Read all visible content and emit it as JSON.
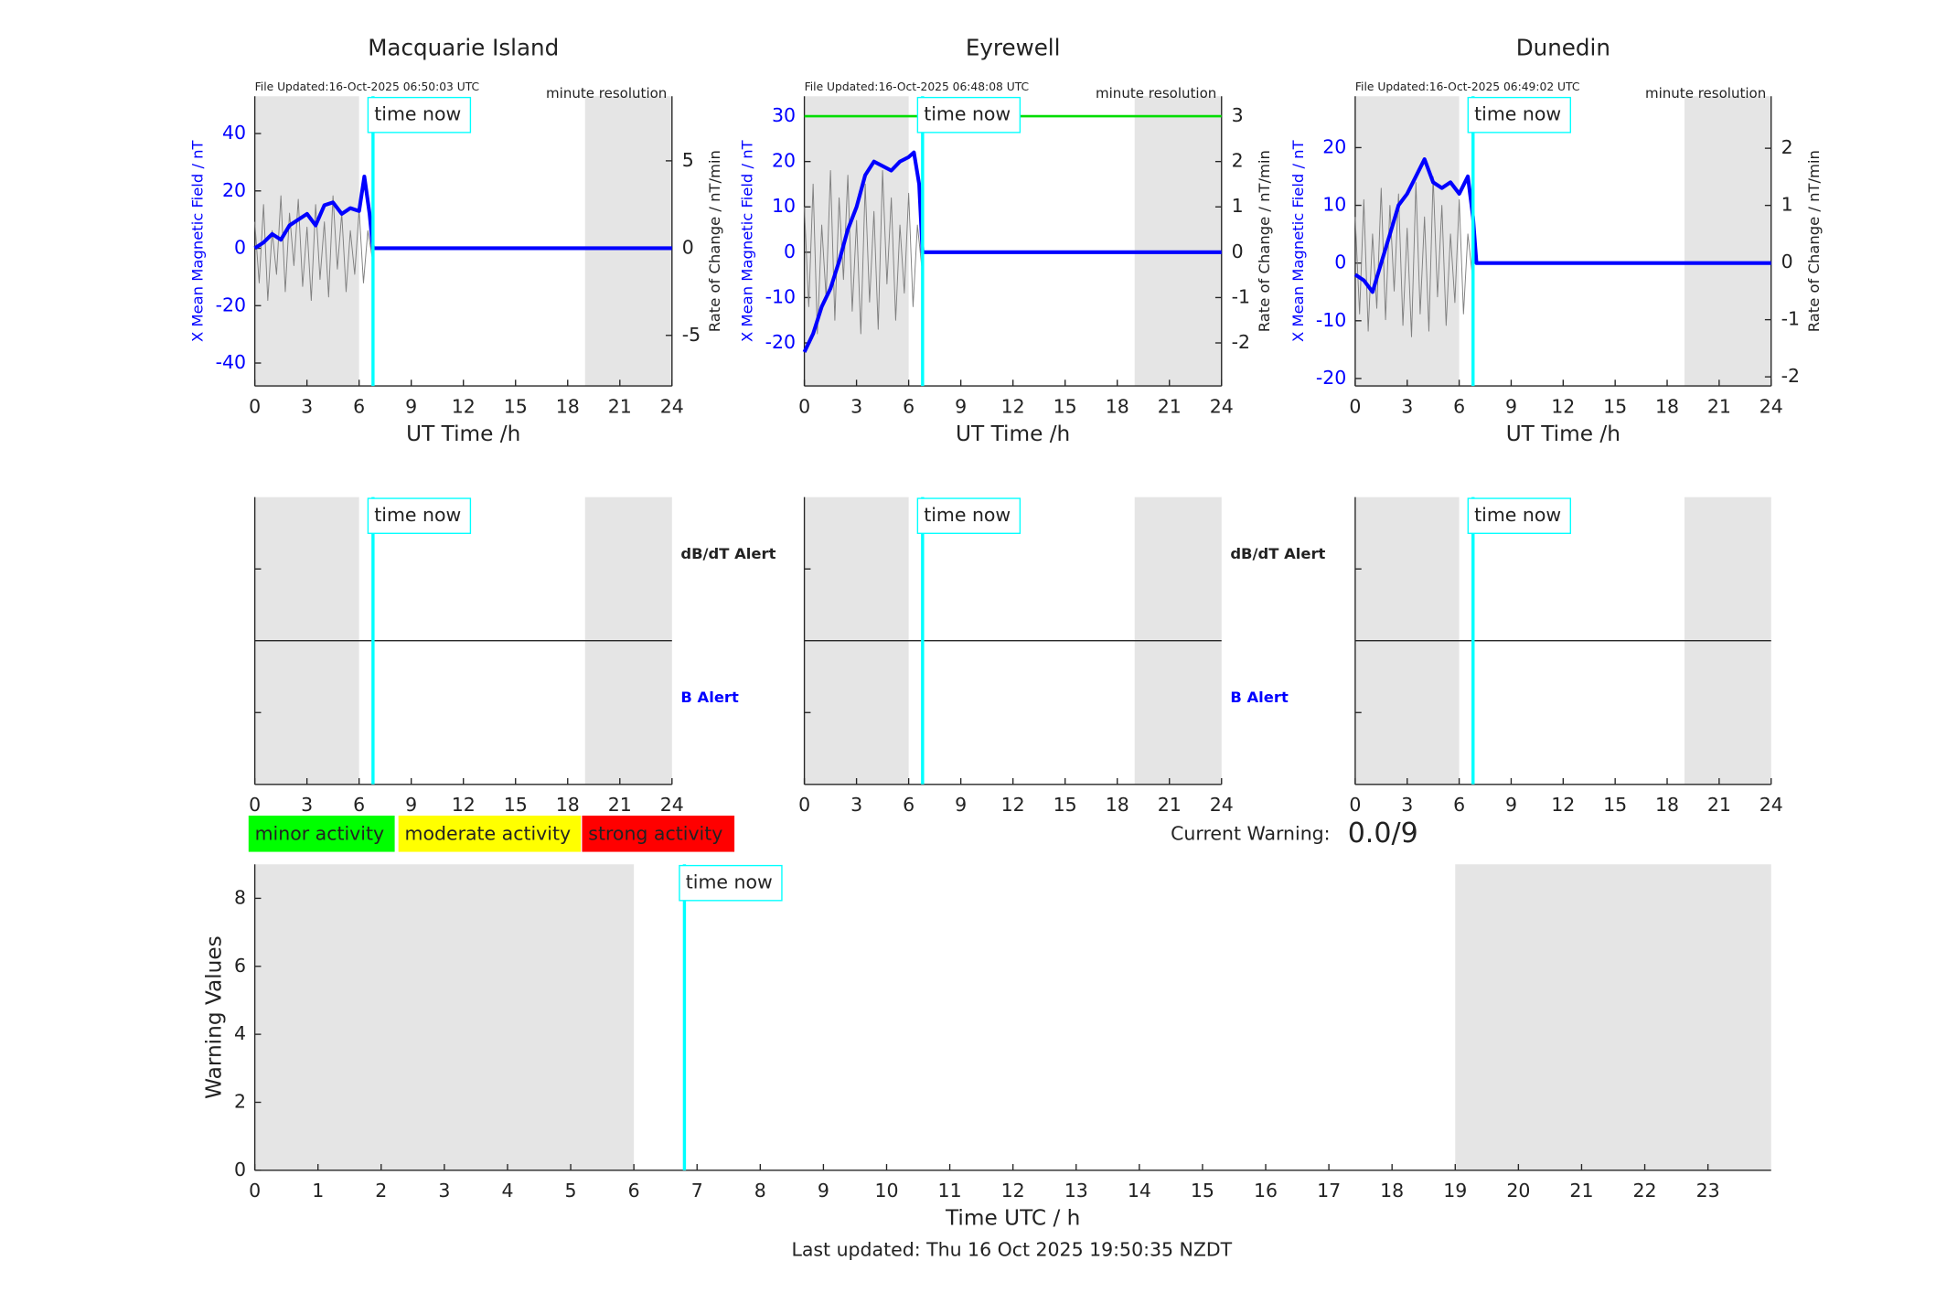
{
  "chart_data": [
    {
      "type": "line",
      "title": "Macquarie Island",
      "note_left": "File Updated:16-Oct-2025 06:50:03 UTC",
      "note_right": "minute resolution",
      "xlim": [
        0,
        24
      ],
      "xticks": [
        0,
        3,
        6,
        9,
        12,
        15,
        18,
        21,
        24
      ],
      "ylim": [
        -48,
        53
      ],
      "yticks": [
        -40,
        -20,
        0,
        20,
        40
      ],
      "y2lim": [
        -7.9,
        8.7
      ],
      "y2ticks": [
        -5,
        0,
        5
      ],
      "xlabel": "UT Time /h",
      "ylabel": "X Mean Magnetic Field / nT",
      "y2label": "Rate of Change / nT/min",
      "shaded": [
        [
          0,
          6
        ],
        [
          19,
          24
        ]
      ],
      "now": 6.8,
      "now_label": "time now",
      "series": [
        {
          "color": "#808080",
          "axis": "y2",
          "x": [
            0,
            0.25,
            0.5,
            0.75,
            1,
            1.25,
            1.5,
            1.75,
            2,
            2.25,
            2.5,
            2.75,
            3,
            3.25,
            3.5,
            3.75,
            4,
            4.25,
            4.5,
            4.75,
            5,
            5.25,
            5.5,
            5.75,
            6,
            6.25,
            6.5,
            6.75
          ],
          "values": [
            1.5,
            -2,
            2.5,
            -3,
            1,
            -1.5,
            3,
            -2.5,
            2,
            -1,
            2.8,
            -2.2,
            1.2,
            -3,
            2.5,
            -1.8,
            1.5,
            -2.8,
            3,
            -1.2,
            2,
            -2.5,
            1,
            -1.5,
            2.2,
            -2,
            1,
            -0.5
          ]
        },
        {
          "color": "#0000ff",
          "x": [
            0,
            0.5,
            1,
            1.5,
            2,
            2.5,
            3,
            3.5,
            4,
            4.5,
            5,
            5.5,
            6,
            6.3,
            6.6,
            6.8,
            24
          ],
          "values": [
            0,
            2,
            5,
            3,
            8,
            10,
            12,
            8,
            15,
            16,
            12,
            14,
            13,
            25,
            12,
            0,
            0
          ]
        }
      ]
    },
    {
      "type": "line",
      "title": "Eyrewell",
      "note_left": "File Updated:16-Oct-2025 06:48:08 UTC",
      "note_right": "minute resolution",
      "xlim": [
        0,
        24
      ],
      "xticks": [
        0,
        3,
        6,
        9,
        12,
        15,
        18,
        21,
        24
      ],
      "ylim": [
        -29.5,
        34.4
      ],
      "yticks": [
        -20,
        -10,
        0,
        10,
        20,
        30
      ],
      "y2lim": [
        -2.95,
        3.44
      ],
      "y2ticks": [
        -2,
        -1,
        0,
        1,
        2,
        3
      ],
      "xlabel": "UT Time /h",
      "ylabel": "X Mean Magnetic Field / nT",
      "y2label": "Rate of Change / nT/min",
      "shaded": [
        [
          0,
          6
        ],
        [
          19,
          24
        ]
      ],
      "now": 6.8,
      "now_label": "time now",
      "threshold": 30,
      "threshold_color": "#00dd00",
      "series": [
        {
          "color": "#808080",
          "axis": "y2",
          "x": [
            0,
            0.25,
            0.5,
            0.75,
            1,
            1.25,
            1.5,
            1.75,
            2,
            2.25,
            2.5,
            2.75,
            3,
            3.25,
            3.5,
            3.75,
            4,
            4.25,
            4.5,
            4.75,
            5,
            5.25,
            5.5,
            5.75,
            6,
            6.25,
            6.5,
            6.75
          ],
          "values": [
            1,
            -1.2,
            1.5,
            -1.8,
            0.6,
            -1,
            1.8,
            -1.5,
            1.2,
            -0.6,
            1.7,
            -1.3,
            0.7,
            -1.8,
            1.5,
            -1.1,
            0.9,
            -1.7,
            1.8,
            -0.7,
            1.2,
            -1.5,
            0.6,
            -0.9,
            1.3,
            -1.2,
            0.6,
            -0.3
          ]
        },
        {
          "color": "#0000ff",
          "x": [
            0,
            0.5,
            1,
            1.5,
            2,
            2.5,
            3,
            3.5,
            4,
            4.5,
            5,
            5.5,
            6,
            6.3,
            6.6,
            6.8,
            24
          ],
          "values": [
            -22,
            -18,
            -12,
            -8,
            -2,
            5,
            10,
            17,
            20,
            19,
            18,
            20,
            21,
            22,
            15,
            0,
            0
          ]
        }
      ]
    },
    {
      "type": "line",
      "title": "Dunedin",
      "note_left": "File Updated:16-Oct-2025 06:49:02 UTC",
      "note_right": "minute resolution",
      "xlim": [
        0,
        24
      ],
      "xticks": [
        0,
        3,
        6,
        9,
        12,
        15,
        18,
        21,
        24
      ],
      "ylim": [
        -21.3,
        28.9
      ],
      "yticks": [
        -20,
        -10,
        0,
        10,
        20
      ],
      "y2lim": [
        -2.16,
        2.91
      ],
      "y2ticks": [
        -2,
        -1,
        0,
        1,
        2
      ],
      "xlabel": "UT Time /h",
      "ylabel": "X Mean Magnetic Field / nT",
      "y2label": "Rate of Change / nT/min",
      "shaded": [
        [
          0,
          6
        ],
        [
          19,
          24
        ]
      ],
      "now": 6.8,
      "now_label": "time now",
      "series": [
        {
          "color": "#808080",
          "axis": "y2",
          "x": [
            0,
            0.25,
            0.5,
            0.75,
            1,
            1.25,
            1.5,
            1.75,
            2,
            2.25,
            2.5,
            2.75,
            3,
            3.25,
            3.5,
            3.75,
            4,
            4.25,
            4.5,
            4.75,
            5,
            5.25,
            5.5,
            5.75,
            6,
            6.25,
            6.5,
            6.75
          ],
          "values": [
            0.8,
            -0.9,
            1.1,
            -1.2,
            0.5,
            -0.8,
            1.3,
            -1,
            1,
            -0.5,
            1.2,
            -1.1,
            0.6,
            -1.3,
            1.4,
            -0.9,
            0.8,
            -1.2,
            1.5,
            -0.6,
            1,
            -1.1,
            0.5,
            -0.7,
            1.1,
            -0.9,
            0.5,
            -0.2
          ]
        },
        {
          "color": "#0000ff",
          "x": [
            0,
            0.5,
            1,
            1.5,
            2,
            2.5,
            3,
            3.5,
            4,
            4.5,
            5,
            5.5,
            6,
            6.5,
            6.8,
            7,
            24
          ],
          "values": [
            -2,
            -3,
            -5,
            0,
            5,
            10,
            12,
            15,
            18,
            14,
            13,
            14,
            12,
            15,
            8,
            0,
            0
          ]
        }
      ]
    },
    {
      "type": "alert",
      "xlim": [
        0,
        24
      ],
      "xticks": [
        0,
        3,
        6,
        9,
        12,
        15,
        18,
        21,
        24
      ],
      "shaded": [
        [
          0,
          6
        ],
        [
          19,
          24
        ]
      ],
      "now": 6.8,
      "now_label": "time now",
      "upper_label": "dB/dT Alert",
      "lower_label": "B Alert"
    },
    {
      "type": "alert",
      "xlim": [
        0,
        24
      ],
      "xticks": [
        0,
        3,
        6,
        9,
        12,
        15,
        18,
        21,
        24
      ],
      "shaded": [
        [
          0,
          6
        ],
        [
          19,
          24
        ]
      ],
      "now": 6.8,
      "now_label": "time now",
      "upper_label": "dB/dT Alert",
      "lower_label": "B Alert"
    },
    {
      "type": "alert",
      "xlim": [
        0,
        24
      ],
      "xticks": [
        0,
        3,
        6,
        9,
        12,
        15,
        18,
        21,
        24
      ],
      "shaded": [
        [
          0,
          6
        ],
        [
          19,
          24
        ]
      ],
      "now": 6.8,
      "now_label": "time now"
    },
    {
      "type": "line",
      "xlim": [
        0,
        24
      ],
      "xticks": [
        0,
        1,
        2,
        3,
        4,
        5,
        6,
        7,
        8,
        9,
        10,
        11,
        12,
        13,
        14,
        15,
        16,
        17,
        18,
        19,
        20,
        21,
        22,
        23
      ],
      "ylim": [
        0,
        9
      ],
      "yticks": [
        0,
        2,
        4,
        6,
        8
      ],
      "xlabel": "Time UTC / h",
      "ylabel": "Warning Values",
      "shaded": [
        [
          0,
          6
        ],
        [
          19,
          24
        ]
      ],
      "now": 6.8,
      "now_label": "time now",
      "series": []
    }
  ],
  "activity_legend": [
    {
      "label": "minor activity",
      "color": "#00ff00"
    },
    {
      "label": "moderate activity",
      "color": "#ffff00"
    },
    {
      "label": "strong activity",
      "color": "#ff0000"
    }
  ],
  "current_warning": {
    "label": "Current Warning:",
    "value": "0.0/9"
  },
  "footer": "Last updated: Thu 16 Oct 2025 19:50:35 NZDT"
}
